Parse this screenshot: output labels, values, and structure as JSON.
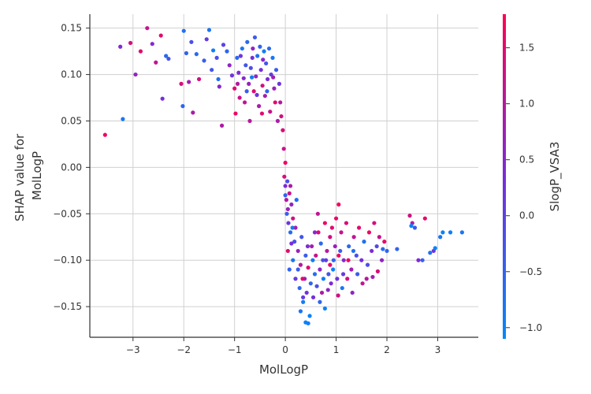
{
  "chart_data": {
    "type": "scatter",
    "title": "",
    "xlabel": "MolLogP",
    "ylabel_lines": [
      "SHAP value for",
      "MolLogP"
    ],
    "xlim": [
      -3.85,
      3.8
    ],
    "ylim": [
      -0.183,
      0.165
    ],
    "x_ticks": [
      -3,
      -2,
      -1,
      0,
      1,
      2,
      3
    ],
    "x_tick_labels": [
      "−3",
      "−2",
      "−1",
      "0",
      "1",
      "2",
      "3"
    ],
    "y_ticks": [
      -0.15,
      -0.1,
      -0.05,
      0.0,
      0.05,
      0.1,
      0.15
    ],
    "y_tick_labels": [
      "−0.15",
      "−0.10",
      "−0.05",
      "0.00",
      "0.05",
      "0.10",
      "0.15"
    ],
    "grid": true,
    "colorbar": {
      "label": "SlogP_VSA3",
      "range": [
        -1.1,
        1.8
      ],
      "ticks": [
        -1.0,
        -0.5,
        0.0,
        0.5,
        1.0,
        1.5
      ],
      "tick_labels": [
        "−1.0",
        "−0.5",
        "0.0",
        "0.5",
        "1.0",
        "1.5"
      ],
      "colormap": [
        "#008afb",
        "#7a2bdb",
        "#ff0052"
      ]
    },
    "points": [
      [
        -3.55,
        0.035,
        1.6
      ],
      [
        -3.25,
        0.13,
        0.4
      ],
      [
        -3.2,
        0.052,
        -0.8
      ],
      [
        -3.05,
        0.134,
        1.3
      ],
      [
        -2.95,
        0.1,
        0.6
      ],
      [
        -2.85,
        0.125,
        1.5
      ],
      [
        -2.72,
        0.15,
        1.2
      ],
      [
        -2.62,
        0.133,
        0.5
      ],
      [
        -2.55,
        0.113,
        1.1
      ],
      [
        -2.45,
        0.142,
        1.5
      ],
      [
        -2.42,
        0.074,
        0.3
      ],
      [
        -2.35,
        0.12,
        -0.6
      ],
      [
        -2.3,
        0.117,
        -0.3
      ],
      [
        -2.05,
        0.09,
        1.4
      ],
      [
        -2.02,
        0.066,
        -0.5
      ],
      [
        -2.0,
        0.147,
        -0.7
      ],
      [
        -1.95,
        0.123,
        -0.5
      ],
      [
        -1.85,
        0.135,
        -0.2
      ],
      [
        -1.9,
        0.092,
        0.8
      ],
      [
        -1.82,
        0.059,
        0.9
      ],
      [
        -1.75,
        0.122,
        -0.6
      ],
      [
        -1.7,
        0.095,
        1.3
      ],
      [
        -1.6,
        0.115,
        -0.4
      ],
      [
        -1.55,
        0.138,
        0.1
      ],
      [
        -1.5,
        0.148,
        -0.8
      ],
      [
        -1.45,
        0.105,
        -0.3
      ],
      [
        -1.42,
        0.126,
        -0.9
      ],
      [
        -1.35,
        0.118,
        -0.2
      ],
      [
        -1.32,
        0.095,
        -0.7
      ],
      [
        -1.3,
        0.087,
        0.5
      ],
      [
        -1.25,
        0.045,
        0.9
      ],
      [
        -1.22,
        0.132,
        0.0
      ],
      [
        -1.15,
        0.125,
        -0.5
      ],
      [
        -1.1,
        0.11,
        0.6
      ],
      [
        -1.05,
        0.099,
        0.2
      ],
      [
        -1.0,
        0.085,
        1.5
      ],
      [
        -0.98,
        0.058,
        1.6
      ],
      [
        -0.95,
        0.118,
        -0.6
      ],
      [
        -0.92,
        0.102,
        0.4
      ],
      [
        -0.9,
        0.075,
        1.2
      ],
      [
        -0.85,
        0.128,
        -0.8
      ],
      [
        -0.82,
        0.096,
        0.5
      ],
      [
        -0.8,
        0.07,
        1.1
      ],
      [
        -0.78,
        0.11,
        -0.3
      ],
      [
        -0.75,
        0.135,
        -0.6
      ],
      [
        -0.72,
        0.09,
        0.7
      ],
      [
        -0.7,
        0.05,
        1.0
      ],
      [
        -0.68,
        0.107,
        -0.2
      ],
      [
        -0.65,
        0.118,
        0.3
      ],
      [
        -0.62,
        0.082,
        1.4
      ],
      [
        -0.6,
        0.14,
        -0.4
      ],
      [
        -0.58,
        0.098,
        0.6
      ],
      [
        -0.55,
        0.12,
        -0.7
      ],
      [
        -0.52,
        0.066,
        0.9
      ],
      [
        -0.5,
        0.13,
        -0.5
      ],
      [
        -0.48,
        0.105,
        0.3
      ],
      [
        -0.45,
        0.088,
        1.3
      ],
      [
        -0.42,
        0.125,
        -0.9
      ],
      [
        -0.4,
        0.077,
        0.8
      ],
      [
        -0.38,
        0.112,
        -0.3
      ],
      [
        -0.35,
        0.095,
        0.4
      ],
      [
        -0.32,
        0.128,
        -0.6
      ],
      [
        -0.3,
        0.06,
        1.2
      ],
      [
        -0.28,
        0.1,
        0.1
      ],
      [
        -0.25,
        0.118,
        -0.8
      ],
      [
        -0.22,
        0.085,
        0.7
      ],
      [
        -0.2,
        0.07,
        1.5
      ],
      [
        -0.18,
        0.105,
        -0.4
      ],
      [
        -0.15,
        0.05,
        0.9
      ],
      [
        -0.12,
        0.09,
        0.2
      ],
      [
        -0.1,
        0.07,
        1.0
      ],
      [
        -0.08,
        0.055,
        1.3
      ],
      [
        -0.05,
        0.04,
        1.4
      ],
      [
        -0.03,
        0.02,
        1.2
      ],
      [
        0.0,
        0.005,
        1.6
      ],
      [
        -0.88,
        0.12,
        0.2
      ],
      [
        -0.66,
        0.097,
        -0.9
      ],
      [
        -0.44,
        0.116,
        0.5
      ],
      [
        -0.36,
        0.082,
        -0.5
      ],
      [
        -0.24,
        0.097,
        0.8
      ],
      [
        -0.56,
        0.078,
        0.2
      ],
      [
        -0.76,
        0.082,
        -0.4
      ],
      [
        -0.94,
        0.09,
        1.0
      ],
      [
        -0.46,
        0.058,
        1.5
      ],
      [
        -0.64,
        0.128,
        0.6
      ],
      [
        0.0,
        -0.02,
        0.4
      ],
      [
        0.02,
        -0.035,
        1.0
      ],
      [
        0.03,
        -0.05,
        -0.4
      ],
      [
        0.05,
        -0.045,
        0.8
      ],
      [
        0.06,
        -0.06,
        0.2
      ],
      [
        0.08,
        -0.028,
        1.2
      ],
      [
        0.1,
        -0.07,
        -0.6
      ],
      [
        0.12,
        -0.04,
        0.6
      ],
      [
        0.15,
        -0.055,
        1.3
      ],
      [
        0.18,
        -0.08,
        -0.2
      ],
      [
        0.2,
        -0.065,
        0.9
      ],
      [
        0.22,
        -0.035,
        -0.7
      ],
      [
        0.05,
        -0.09,
        1.5
      ],
      [
        0.08,
        -0.11,
        -0.5
      ],
      [
        0.12,
        -0.082,
        0.3
      ],
      [
        0.15,
        -0.1,
        -0.8
      ],
      [
        0.2,
        -0.12,
        0.1
      ],
      [
        0.25,
        -0.09,
        0.7
      ],
      [
        0.28,
        -0.13,
        -0.6
      ],
      [
        0.3,
        -0.105,
        1.0
      ],
      [
        0.32,
        -0.075,
        -0.3
      ],
      [
        0.35,
        -0.145,
        -0.9
      ],
      [
        0.38,
        -0.12,
        0.5
      ],
      [
        0.4,
        -0.095,
        -0.4
      ],
      [
        0.42,
        -0.135,
        0.2
      ],
      [
        0.45,
        -0.108,
        1.4
      ],
      [
        0.48,
        -0.16,
        -1.0
      ],
      [
        0.5,
        -0.125,
        -0.5
      ],
      [
        0.52,
        -0.085,
        0.8
      ],
      [
        0.55,
        -0.14,
        0.3
      ],
      [
        0.58,
        -0.115,
        -0.7
      ],
      [
        0.6,
        -0.095,
        1.2
      ],
      [
        0.62,
        -0.128,
        -0.2
      ],
      [
        0.65,
        -0.07,
        1.5
      ],
      [
        0.68,
        -0.11,
        0.6
      ],
      [
        0.7,
        -0.082,
        -0.6
      ],
      [
        0.72,
        -0.135,
        0.9
      ],
      [
        0.75,
        -0.12,
        -0.9
      ],
      [
        0.78,
        -0.06,
        1.6
      ],
      [
        0.8,
        -0.1,
        0.1
      ],
      [
        0.82,
        -0.09,
        1.0
      ],
      [
        0.85,
        -0.115,
        -0.3
      ],
      [
        0.88,
        -0.075,
        1.3
      ],
      [
        0.9,
        -0.125,
        0.4
      ],
      [
        0.92,
        -0.065,
        1.5
      ],
      [
        0.95,
        -0.1,
        -0.5
      ],
      [
        0.98,
        -0.085,
        0.7
      ],
      [
        1.0,
        -0.055,
        1.6
      ],
      [
        1.02,
        -0.12,
        0.2
      ],
      [
        1.05,
        -0.04,
        1.7
      ],
      [
        1.08,
        -0.09,
        -0.4
      ],
      [
        1.1,
        -0.07,
        1.2
      ],
      [
        1.15,
        -0.1,
        0.5
      ],
      [
        1.2,
        -0.06,
        1.4
      ],
      [
        1.25,
        -0.085,
        -0.6
      ],
      [
        1.3,
        -0.11,
        0.8
      ],
      [
        1.35,
        -0.075,
        1.1
      ],
      [
        1.4,
        -0.095,
        -0.2
      ],
      [
        1.45,
        -0.065,
        1.5
      ],
      [
        1.5,
        -0.1,
        0.3
      ],
      [
        1.55,
        -0.08,
        -0.7
      ],
      [
        1.6,
        -0.12,
        1.0
      ],
      [
        1.65,
        -0.07,
        1.6
      ],
      [
        1.7,
        -0.09,
        0.4
      ],
      [
        1.75,
        -0.06,
        1.3
      ],
      [
        1.8,
        -0.085,
        -0.1
      ],
      [
        1.85,
        -0.075,
        1.2
      ],
      [
        1.9,
        -0.1,
        0.6
      ],
      [
        1.95,
        -0.08,
        1.5
      ],
      [
        2.0,
        -0.09,
        -0.5
      ],
      [
        1.05,
        -0.095,
        1.6
      ],
      [
        1.12,
        -0.13,
        -0.8
      ],
      [
        1.22,
        -0.12,
        1.3
      ],
      [
        1.32,
        -0.135,
        0.6
      ],
      [
        1.42,
        -0.115,
        -0.4
      ],
      [
        1.52,
        -0.125,
        1.1
      ],
      [
        1.62,
        -0.105,
        -0.2
      ],
      [
        1.72,
        -0.118,
        0.8
      ],
      [
        1.82,
        -0.112,
        1.4
      ],
      [
        1.92,
        -0.088,
        -0.6
      ],
      [
        2.2,
        -0.088,
        -0.5
      ],
      [
        2.45,
        -0.052,
        1.3
      ],
      [
        2.5,
        -0.06,
        1.0
      ],
      [
        2.55,
        -0.065,
        -0.4
      ],
      [
        2.62,
        -0.1,
        0.4
      ],
      [
        2.7,
        -0.1,
        -0.5
      ],
      [
        2.75,
        -0.055,
        1.5
      ],
      [
        2.85,
        -0.092,
        -0.7
      ],
      [
        2.92,
        -0.09,
        0.2
      ],
      [
        2.95,
        -0.087,
        -1.0
      ],
      [
        3.05,
        -0.075,
        -0.8
      ],
      [
        3.1,
        -0.07,
        -1.0
      ],
      [
        3.25,
        -0.07,
        -0.9
      ],
      [
        3.48,
        -0.07,
        -0.8
      ],
      [
        2.48,
        -0.063,
        -1.0
      ],
      [
        0.3,
        -0.155,
        -0.8
      ],
      [
        0.4,
        -0.167,
        -1.0
      ],
      [
        0.45,
        -0.168,
        -0.9
      ],
      [
        0.35,
        -0.14,
        0.1
      ],
      [
        0.25,
        -0.11,
        -0.4
      ],
      [
        0.1,
        -0.02,
        0.9
      ],
      [
        0.0,
        -0.03,
        -0.5
      ],
      [
        -0.02,
        -0.01,
        1.4
      ],
      [
        0.04,
        -0.015,
        -0.2
      ],
      [
        0.14,
        -0.065,
        -0.9
      ],
      [
        0.58,
        -0.07,
        0.5
      ],
      [
        0.68,
        -0.145,
        -0.5
      ],
      [
        0.78,
        -0.152,
        -1.0
      ],
      [
        0.88,
        -0.105,
        1.5
      ],
      [
        0.64,
        -0.05,
        1.1
      ],
      [
        0.74,
        -0.1,
        -0.2
      ],
      [
        0.84,
        -0.132,
        0.6
      ],
      [
        0.94,
        -0.11,
        -0.9
      ],
      [
        1.04,
        -0.138,
        1.3
      ],
      [
        1.14,
        -0.115,
        0.1
      ],
      [
        1.24,
        -0.1,
        1.6
      ],
      [
        1.34,
        -0.09,
        -0.7
      ],
      [
        0.44,
        -0.085,
        0.4
      ],
      [
        0.54,
        -0.1,
        -0.9
      ],
      [
        0.34,
        -0.12,
        1.5
      ]
    ]
  }
}
